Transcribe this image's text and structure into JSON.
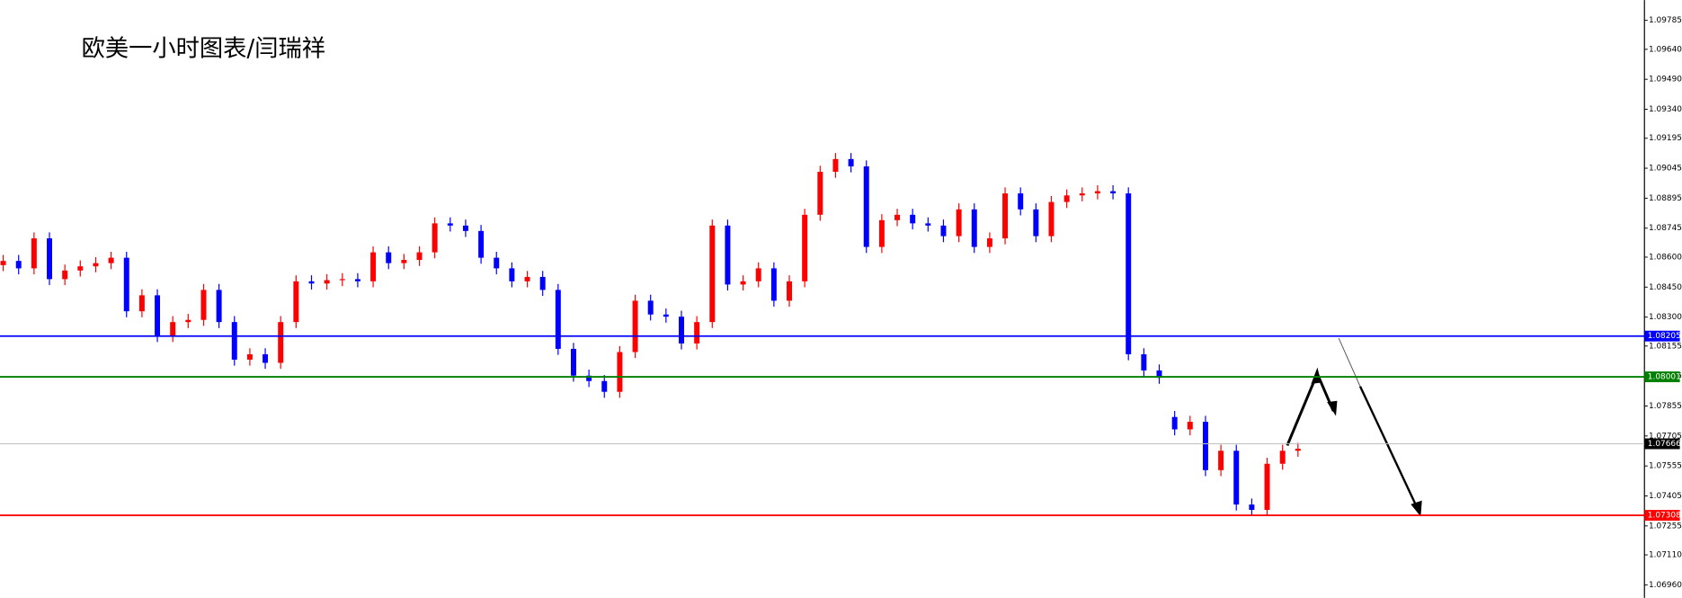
{
  "chart_data": {
    "type": "candlestick",
    "title": "欧美一小时图表/闫瑞祥",
    "up_color": "#ff0000",
    "down_color": "#0000ff",
    "ylim": [
      1.06895,
      1.09886
    ],
    "yticks": [
      {
        "value": 1.09785,
        "label": "1.09785"
      },
      {
        "value": 1.0964,
        "label": "1.09640"
      },
      {
        "value": 1.0949,
        "label": "1.09490"
      },
      {
        "value": 1.0934,
        "label": "1.09340"
      },
      {
        "value": 1.09195,
        "label": "1.09195"
      },
      {
        "value": 1.09045,
        "label": "1.09045"
      },
      {
        "value": 1.08895,
        "label": "1.08895"
      },
      {
        "value": 1.08745,
        "label": "1.08745"
      },
      {
        "value": 1.086,
        "label": "1.08600"
      },
      {
        "value": 1.0845,
        "label": "1.08450"
      },
      {
        "value": 1.083,
        "label": "1.08300"
      },
      {
        "value": 1.08155,
        "label": "1.08155"
      },
      {
        "value": 1.08005,
        "label": "1.08005"
      },
      {
        "value": 1.07855,
        "label": "1.07855"
      },
      {
        "value": 1.07705,
        "label": "1.07705"
      },
      {
        "value": 1.07555,
        "label": "1.07555"
      },
      {
        "value": 1.07405,
        "label": "1.07405"
      },
      {
        "value": 1.07255,
        "label": "1.07255"
      },
      {
        "value": 1.0711,
        "label": "1.07110"
      },
      {
        "value": 1.0696,
        "label": "1.06960"
      }
    ],
    "price_lines": [
      {
        "value": 1.08205,
        "label": "1.08205",
        "color": "#0000ff"
      },
      {
        "value": 1.08001,
        "label": "1.08001",
        "color": "#008000"
      },
      {
        "value": 1.07666,
        "label": "1.07666",
        "color": "#000000"
      },
      {
        "value": 1.07308,
        "label": "1.07308",
        "color": "#ff0000"
      }
    ],
    "candles": [
      [
        1.0856,
        1.08611,
        1.0853,
        1.08581
      ],
      [
        1.08581,
        1.08611,
        1.08514,
        1.08544
      ],
      [
        1.08544,
        1.08724,
        1.08514,
        1.08694
      ],
      [
        1.08694,
        1.08724,
        1.0846,
        1.0849
      ],
      [
        1.0849,
        1.08563,
        1.0846,
        1.08533
      ],
      [
        1.08533,
        1.08584,
        1.08503,
        1.08554
      ],
      [
        1.08554,
        1.086,
        1.08524,
        1.0857
      ],
      [
        1.0857,
        1.08627,
        1.0854,
        1.08597
      ],
      [
        1.08597,
        1.08627,
        1.08299,
        1.08329
      ],
      [
        1.08329,
        1.08439,
        1.08299,
        1.08409
      ],
      [
        1.08409,
        1.08439,
        1.08175,
        1.08205
      ],
      [
        1.08205,
        1.08305,
        1.08175,
        1.08275
      ],
      [
        1.08275,
        1.08316,
        1.08245,
        1.08286
      ],
      [
        1.08286,
        1.08466,
        1.08256,
        1.08436
      ],
      [
        1.08436,
        1.08466,
        1.08245,
        1.08275
      ],
      [
        1.08275,
        1.08305,
        1.08057,
        1.08087
      ],
      [
        1.08087,
        1.08144,
        1.08057,
        1.08114
      ],
      [
        1.08114,
        1.08144,
        1.08041,
        1.08071
      ],
      [
        1.08071,
        1.08305,
        1.08041,
        1.08275
      ],
      [
        1.08275,
        1.08509,
        1.08245,
        1.08479
      ],
      [
        1.08479,
        1.08509,
        1.08438,
        1.08468
      ],
      [
        1.08468,
        1.08515,
        1.08438,
        1.08485
      ],
      [
        1.08485,
        1.0852,
        1.08455,
        1.0849
      ],
      [
        1.0849,
        1.0852,
        1.08449,
        1.08479
      ],
      [
        1.08479,
        1.08654,
        1.08449,
        1.08624
      ],
      [
        1.08624,
        1.08654,
        1.0854,
        1.0857
      ],
      [
        1.0857,
        1.08616,
        1.0854,
        1.08586
      ],
      [
        1.08586,
        1.08654,
        1.08556,
        1.08624
      ],
      [
        1.08624,
        1.08799,
        1.08594,
        1.08769
      ],
      [
        1.08769,
        1.08799,
        1.08728,
        1.08758
      ],
      [
        1.08758,
        1.08788,
        1.08701,
        1.08731
      ],
      [
        1.08731,
        1.08761,
        1.08567,
        1.08597
      ],
      [
        1.08597,
        1.08627,
        1.08514,
        1.08544
      ],
      [
        1.08544,
        1.08574,
        1.08449,
        1.08479
      ],
      [
        1.08479,
        1.08531,
        1.08449,
        1.08501
      ],
      [
        1.08501,
        1.08531,
        1.08406,
        1.08436
      ],
      [
        1.08436,
        1.08466,
        1.08111,
        1.08141
      ],
      [
        1.08141,
        1.08171,
        1.07977,
        1.08007
      ],
      [
        1.08007,
        1.08037,
        1.0795,
        1.0798
      ],
      [
        1.0798,
        1.0801,
        1.07896,
        1.07926
      ],
      [
        1.07926,
        1.08155,
        1.07896,
        1.08125
      ],
      [
        1.08125,
        1.08412,
        1.08095,
        1.08382
      ],
      [
        1.08382,
        1.08412,
        1.08283,
        1.08313
      ],
      [
        1.08313,
        1.08343,
        1.08272,
        1.08302
      ],
      [
        1.08302,
        1.08332,
        1.08138,
        1.08168
      ],
      [
        1.08168,
        1.08305,
        1.08138,
        1.08275
      ],
      [
        1.08275,
        1.08788,
        1.08245,
        1.08758
      ],
      [
        1.08758,
        1.08788,
        1.08433,
        1.08463
      ],
      [
        1.08463,
        1.08509,
        1.08433,
        1.08479
      ],
      [
        1.08479,
        1.08574,
        1.08449,
        1.08544
      ],
      [
        1.08544,
        1.08574,
        1.08352,
        1.08382
      ],
      [
        1.08382,
        1.08509,
        1.08352,
        1.08479
      ],
      [
        1.08479,
        1.08842,
        1.08449,
        1.08812
      ],
      [
        1.08812,
        1.09057,
        1.08782,
        1.09027
      ],
      [
        1.09027,
        1.09121,
        1.08997,
        1.09091
      ],
      [
        1.09091,
        1.09121,
        1.09024,
        1.09054
      ],
      [
        1.09054,
        1.09084,
        1.08621,
        1.08651
      ],
      [
        1.08651,
        1.08815,
        1.08621,
        1.08785
      ],
      [
        1.08785,
        1.08842,
        1.08755,
        1.08812
      ],
      [
        1.08812,
        1.08842,
        1.08739,
        1.08769
      ],
      [
        1.08769,
        1.08799,
        1.08728,
        1.08758
      ],
      [
        1.08758,
        1.08788,
        1.08675,
        1.08705
      ],
      [
        1.08705,
        1.08869,
        1.08675,
        1.08839
      ],
      [
        1.08839,
        1.08869,
        1.08621,
        1.08651
      ],
      [
        1.08651,
        1.08724,
        1.08621,
        1.08694
      ],
      [
        1.08694,
        1.08949,
        1.08664,
        1.08919
      ],
      [
        1.08919,
        1.08949,
        1.08809,
        1.08839
      ],
      [
        1.08839,
        1.08869,
        1.08675,
        1.08705
      ],
      [
        1.08705,
        1.08906,
        1.08675,
        1.08876
      ],
      [
        1.08876,
        1.08939,
        1.08846,
        1.08909
      ],
      [
        1.08909,
        1.08949,
        1.08879,
        1.08919
      ],
      [
        1.08919,
        1.0896,
        1.08889,
        1.0893
      ],
      [
        1.0893,
        1.0896,
        1.08889,
        1.08919
      ],
      [
        1.08919,
        1.08949,
        1.08084,
        1.08114
      ],
      [
        1.08114,
        1.08144,
        1.08003,
        1.08033
      ],
      [
        1.08033,
        1.08063,
        1.07966,
        1.07996
      ],
      [
        1.078,
        1.0783,
        1.07708,
        1.07738
      ],
      [
        1.07738,
        1.07806,
        1.07708,
        1.07776
      ],
      [
        1.07776,
        1.07806,
        1.07504,
        1.07534
      ],
      [
        1.07534,
        1.07661,
        1.07504,
        1.07631
      ],
      [
        1.07631,
        1.07661,
        1.07332,
        1.07362
      ],
      [
        1.07362,
        1.07392,
        1.07305,
        1.07335
      ],
      [
        1.07335,
        1.07596,
        1.07305,
        1.07566
      ],
      [
        1.07566,
        1.07661,
        1.07536,
        1.07631
      ],
      [
        1.07631,
        1.07671,
        1.07601,
        1.07641
      ]
    ]
  }
}
